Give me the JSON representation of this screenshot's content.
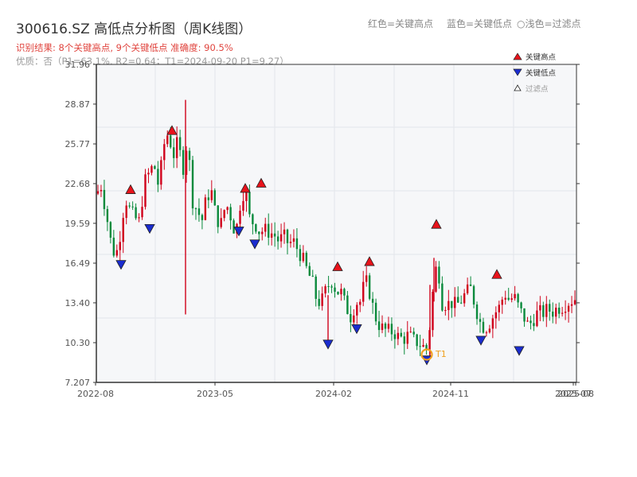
{
  "title": "300616.SZ 高低点分析图（周K线图）",
  "top_legend": {
    "red": "红色=关键高点",
    "blue": "蓝色=关键低点",
    "light": "○浅色=过滤点"
  },
  "subtitle_result": "识别结果: 8个关键高点, 9个关键低点   准确度: 90.5%",
  "subtitle_quality": "优质：否（P1=63.1%, R2=0.64；T1=2024-09-20 P1=9.27）",
  "chart_data": {
    "type": "candlestick",
    "y_ticks": [
      "7.207",
      "10.30",
      "13.40",
      "16.49",
      "19.59",
      "22.68",
      "25.77",
      "28.87",
      "31.96"
    ],
    "ylim": [
      7.207,
      31.96
    ],
    "x_ticks": [
      "2022-08",
      "2023-05",
      "2024-02",
      "2024-11",
      "2025-07",
      "2025-08"
    ],
    "legend": {
      "high": "关键高点",
      "low": "关键低点",
      "filtered": "过滤点"
    },
    "annotation": "T1",
    "up_color": "#d0021b",
    "down_color": "#0a8a3c",
    "high_marker_color": "#e8131b",
    "low_marker_color": "#1a2ccf",
    "t1_color": "#f0a020",
    "key_highs": [
      {
        "date": "2022-10",
        "value": 21.9
      },
      {
        "date": "2023-02",
        "value": 26.5
      },
      {
        "date": "2023-07",
        "value": 22.0
      },
      {
        "date": "2023-08",
        "value": 22.4
      },
      {
        "date": "2024-03",
        "value": 15.9
      },
      {
        "date": "2024-04",
        "value": 16.3
      },
      {
        "date": "2024-10",
        "value": 19.2
      },
      {
        "date": "2025-01",
        "value": 15.3
      }
    ],
    "key_lows": [
      {
        "date": "2022-09",
        "value": 16.7
      },
      {
        "date": "2022-12",
        "value": 19.5
      },
      {
        "date": "2023-07",
        "value": 19.3
      },
      {
        "date": "2023-08",
        "value": 18.3
      },
      {
        "date": "2024-02",
        "value": 10.5
      },
      {
        "date": "2024-04",
        "value": 11.7
      },
      {
        "date": "2024-09",
        "value": 9.27
      },
      {
        "date": "2024-12",
        "value": 10.8
      },
      {
        "date": "2025-03",
        "value": 10.0
      }
    ]
  }
}
